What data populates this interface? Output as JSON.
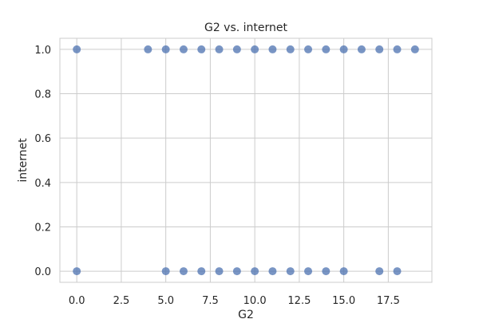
{
  "chart_data": {
    "type": "scatter",
    "title": "G2 vs. internet",
    "xlabel": "G2",
    "ylabel": "internet",
    "xlim": [
      -0.95,
      19.95
    ],
    "ylim": [
      -0.05,
      1.05
    ],
    "xticks": [
      0.0,
      2.5,
      5.0,
      7.5,
      10.0,
      12.5,
      15.0,
      17.5
    ],
    "xtick_labels": [
      "0.0",
      "2.5",
      "5.0",
      "7.5",
      "10.0",
      "12.5",
      "15.0",
      "17.5"
    ],
    "yticks": [
      0.0,
      0.2,
      0.4,
      0.6,
      0.8,
      1.0
    ],
    "ytick_labels": [
      "0.0",
      "0.2",
      "0.4",
      "0.6",
      "0.8",
      "1.0"
    ],
    "grid": true,
    "point_color": "#4c72b0",
    "points": [
      {
        "x": 0,
        "y": 1
      },
      {
        "x": 4,
        "y": 1
      },
      {
        "x": 5,
        "y": 1
      },
      {
        "x": 6,
        "y": 1
      },
      {
        "x": 7,
        "y": 1
      },
      {
        "x": 8,
        "y": 1
      },
      {
        "x": 9,
        "y": 1
      },
      {
        "x": 10,
        "y": 1
      },
      {
        "x": 11,
        "y": 1
      },
      {
        "x": 12,
        "y": 1
      },
      {
        "x": 13,
        "y": 1
      },
      {
        "x": 14,
        "y": 1
      },
      {
        "x": 15,
        "y": 1
      },
      {
        "x": 16,
        "y": 1
      },
      {
        "x": 17,
        "y": 1
      },
      {
        "x": 18,
        "y": 1
      },
      {
        "x": 19,
        "y": 1
      },
      {
        "x": 0,
        "y": 0
      },
      {
        "x": 5,
        "y": 0
      },
      {
        "x": 6,
        "y": 0
      },
      {
        "x": 7,
        "y": 0
      },
      {
        "x": 8,
        "y": 0
      },
      {
        "x": 9,
        "y": 0
      },
      {
        "x": 10,
        "y": 0
      },
      {
        "x": 11,
        "y": 0
      },
      {
        "x": 12,
        "y": 0
      },
      {
        "x": 13,
        "y": 0
      },
      {
        "x": 14,
        "y": 0
      },
      {
        "x": 15,
        "y": 0
      },
      {
        "x": 17,
        "y": 0
      },
      {
        "x": 18,
        "y": 0
      }
    ]
  }
}
